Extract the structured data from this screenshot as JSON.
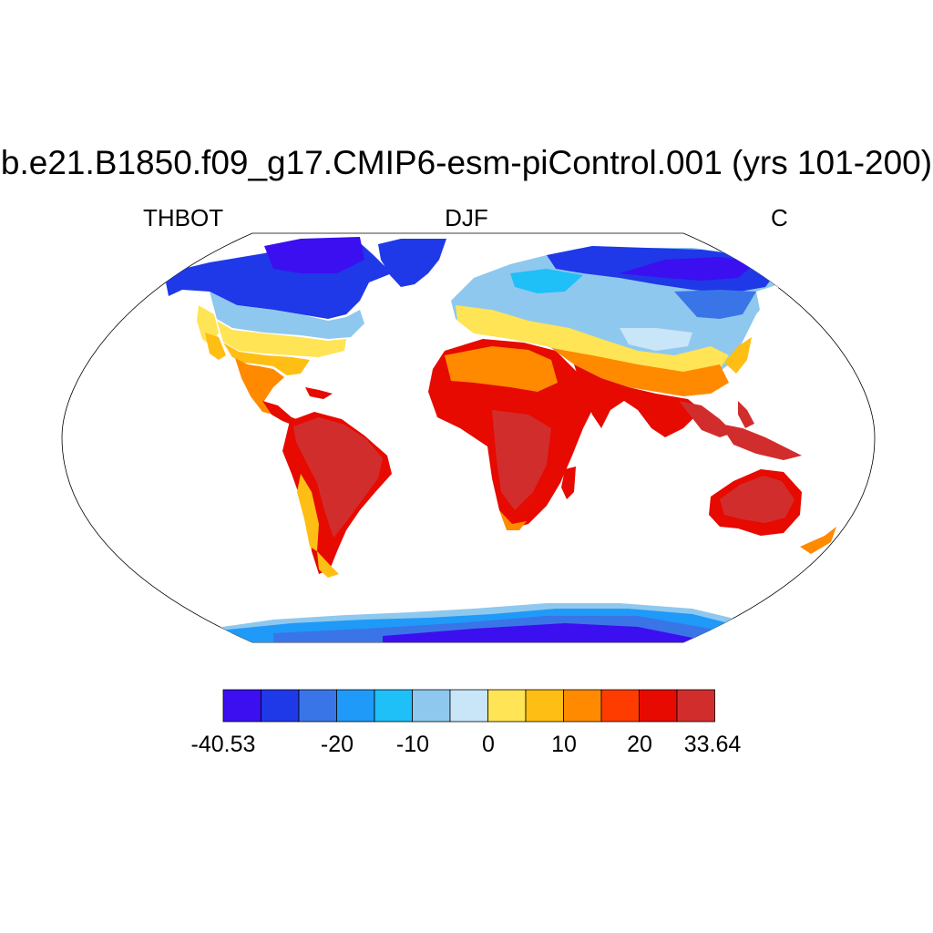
{
  "title": "b.e21.B1850.f09_g17.CMIP6-esm-piControl.001 (yrs 101-200)",
  "left_label": "THBOT",
  "center_label": "DJF",
  "right_label": "C",
  "colorbar": {
    "min": -40.53,
    "max": 33.64,
    "colors": [
      "#3b0ff0",
      "#1f38e8",
      "#3a75e8",
      "#1f9af8",
      "#1fbff8",
      "#8fc8ee",
      "#c8e6f8",
      "#ffe455",
      "#ffbe14",
      "#ff8a00",
      "#ff3c00",
      "#e60a00",
      "#d22d2d"
    ],
    "tick_labels": [
      "-40.53",
      "-20",
      "-10",
      "0",
      "10",
      "20",
      "33.64"
    ]
  }
}
